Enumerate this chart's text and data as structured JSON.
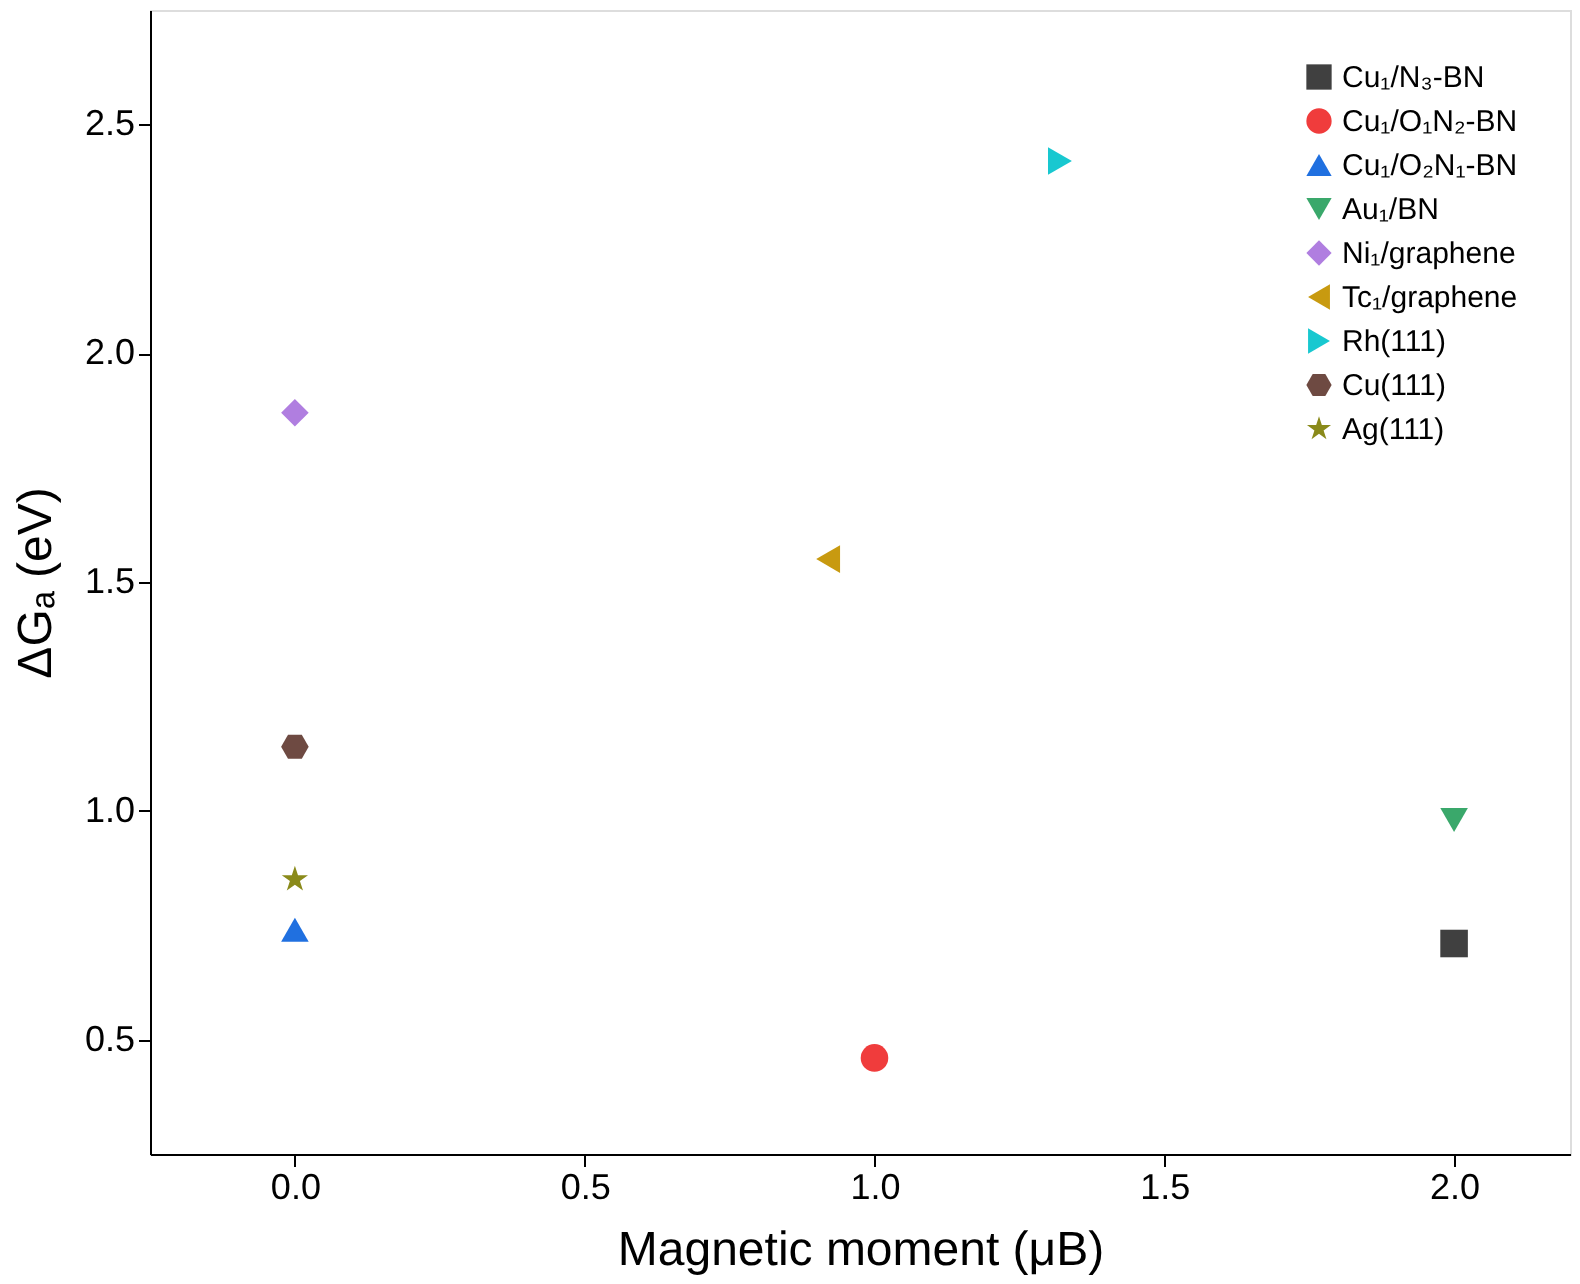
{
  "chart_data": {
    "type": "scatter",
    "xlabel": "Magnetic moment (μB)",
    "ylabel": "ΔGₐ (eV)",
    "xlim": [
      -0.25,
      2.2
    ],
    "ylim": [
      0.25,
      2.75
    ],
    "xticks": [
      {
        "value": 0,
        "label": "0.0"
      },
      0.5,
      {
        "value": 1,
        "label": "1.0"
      },
      1.5,
      {
        "value": 2,
        "label": "2.0"
      }
    ],
    "yticks": [
      0.5,
      {
        "value": 1,
        "label": "1.0"
      },
      1.5,
      {
        "value": 2,
        "label": "2.0"
      },
      2.5
    ],
    "grid": false,
    "legend": "top right",
    "series": [
      {
        "name": "Cu₁/N₃-BN",
        "color": "#404040",
        "marker": "square",
        "x": [
          2.0
        ],
        "values": [
          0.71
        ]
      },
      {
        "name": "Cu₁/O₁N₂-BN",
        "color": "#f03c3c",
        "marker": "circle",
        "x": [
          1.0
        ],
        "values": [
          0.46
        ]
      },
      {
        "name": "Cu₁/O₂N₁-BN",
        "color": "#2070e0",
        "marker": "triangle-up",
        "x": [
          0.0
        ],
        "values": [
          0.74
        ]
      },
      {
        "name": "Au₁/BN",
        "color": "#3aa86b",
        "marker": "triangle-down",
        "x": [
          2.0
        ],
        "values": [
          0.98
        ]
      },
      {
        "name": "Ni₁/graphene",
        "color": "#b07ee0",
        "marker": "diamond",
        "x": [
          0.0
        ],
        "values": [
          1.87
        ]
      },
      {
        "name": "Tc₁/graphene",
        "color": "#c89a10",
        "marker": "triangle-left",
        "x": [
          0.92
        ],
        "values": [
          1.55
        ]
      },
      {
        "name": "Rh(111)",
        "color": "#18c8d0",
        "marker": "triangle-right",
        "x": [
          1.32
        ],
        "values": [
          2.42
        ]
      },
      {
        "name": "Cu(111)",
        "color": "#6e4a42",
        "x": [
          0.0
        ],
        "values": [
          1.14
        ]
      },
      {
        "name": "Ag(111)",
        "color": "#8a8a1a",
        "marker": "star",
        "x": [
          0.0
        ],
        "values": [
          0.85
        ]
      }
    ]
  }
}
